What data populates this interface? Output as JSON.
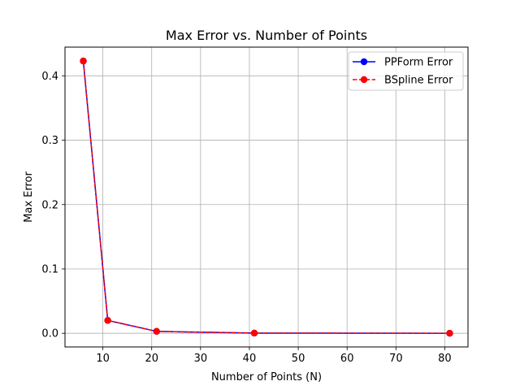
{
  "chart_data": {
    "type": "line",
    "title": "Max Error vs. Number of Points",
    "xlabel": "Number of Points (N)",
    "ylabel": "Max Error",
    "xlim": [
      2.25,
      84.75
    ],
    "ylim": [
      -0.0212,
      0.4446
    ],
    "xticks": [
      10,
      20,
      30,
      40,
      50,
      60,
      70,
      80
    ],
    "yticks": [
      0.0,
      0.1,
      0.2,
      0.3,
      0.4
    ],
    "xtick_labels": [
      "10",
      "20",
      "30",
      "40",
      "50",
      "60",
      "70",
      "80"
    ],
    "ytick_labels": [
      "0.0",
      "0.1",
      "0.2",
      "0.3",
      "0.4"
    ],
    "grid": true,
    "legend_position": "top-right",
    "x": [
      6,
      11,
      21,
      41,
      81
    ],
    "series": [
      {
        "name": "PPForm Error",
        "values": [
          0.423,
          0.02,
          0.003,
          0.0003,
          2e-05
        ],
        "color": "#0000ff",
        "linestyle": "solid",
        "marker": "circle"
      },
      {
        "name": "BSpline Error",
        "values": [
          0.423,
          0.02,
          0.003,
          0.0003,
          2e-05
        ],
        "color": "#ff0000",
        "linestyle": "dashed",
        "marker": "circle"
      }
    ]
  }
}
